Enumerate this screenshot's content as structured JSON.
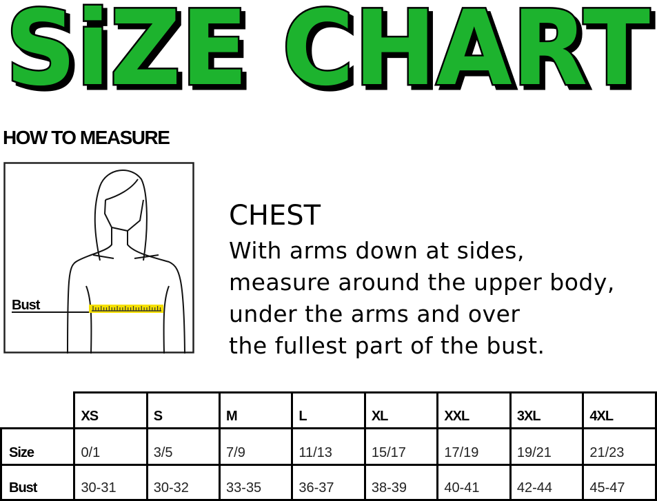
{
  "title": "SiZE CHART",
  "colors": {
    "title_fill": "#1db32e",
    "title_shadow": "#000000",
    "tape": "#f5e000"
  },
  "how_to_measure": "HOW TO MEASURE",
  "illustration": {
    "label": "Bust"
  },
  "chest": {
    "title": "CHEST",
    "lines": [
      "With arms down at sides,",
      "measure around the upper body,",
      "under the arms and over",
      "the fullest part of the bust."
    ]
  },
  "table": {
    "sizes": [
      "XS",
      "S",
      "M",
      "L",
      "XL",
      "XXL",
      "3XL",
      "4XL"
    ],
    "rows": [
      {
        "label": "Size",
        "values": [
          "0/1",
          "3/5",
          "7/9",
          "11/13",
          "15/17",
          "17/19",
          "19/21",
          "21/23"
        ]
      },
      {
        "label": "Bust",
        "values": [
          "30-31",
          "30-32",
          "33-35",
          "36-37",
          "38-39",
          "40-41",
          "42-44",
          "45-47"
        ]
      }
    ]
  }
}
